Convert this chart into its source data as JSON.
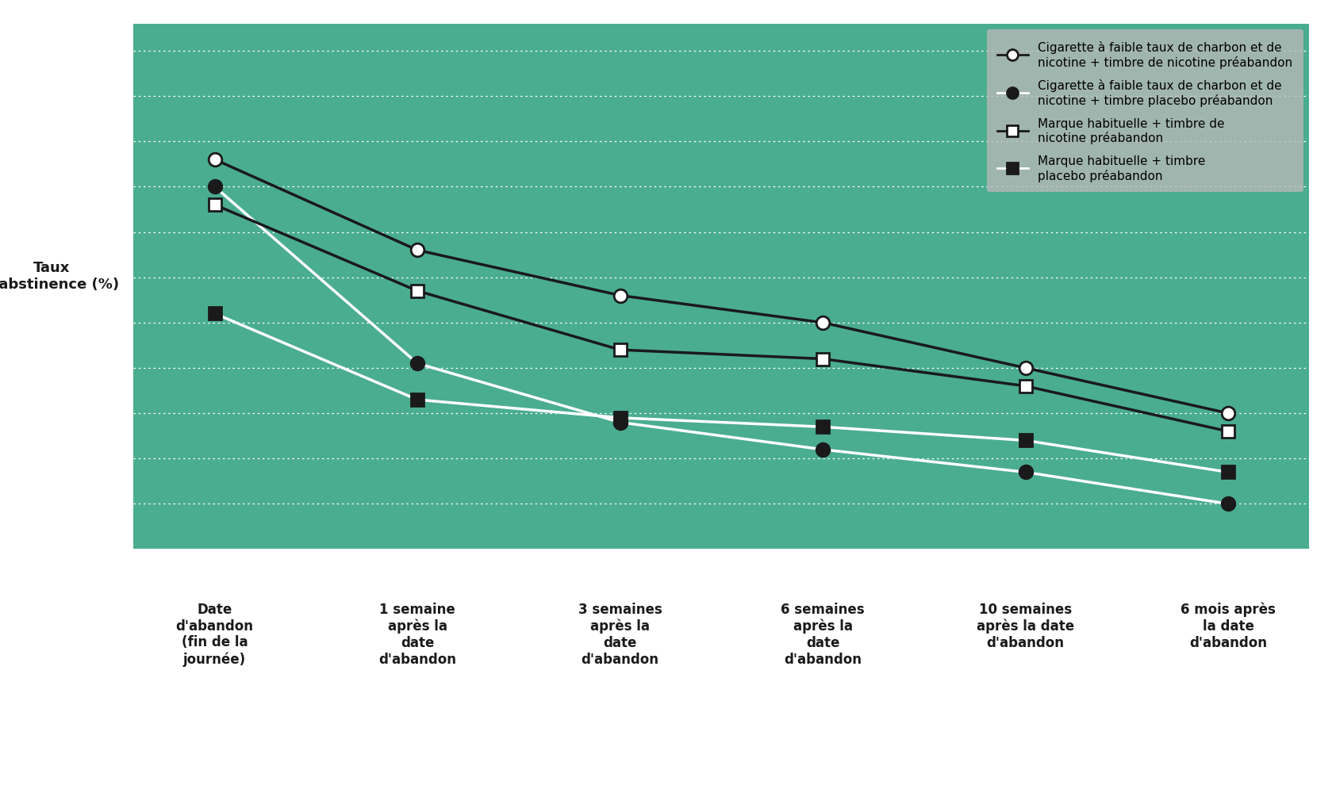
{
  "x_labels": [
    "Date\nd'abandon\n(fin de la\njournée)",
    "1 semaine\naprès la\ndate\nd'abandon",
    "3 semaines\naprès la\ndate\nd'abandon",
    "6 semaines\naprès la\ndate\nd'abandon",
    "10 semaines\naprès la date\nd'abandon",
    "6 mois après\nla date\nd'abandon"
  ],
  "series": [
    {
      "label": "Cigarette à faible taux de charbon et de\nnicotine + timbre de nicotine préabandon",
      "values": [
        43,
        33,
        28,
        25,
        20,
        15
      ],
      "color": "#1a1a1a",
      "marker": "o",
      "marker_facecolor": "white",
      "marker_edgecolor": "#1a1a1a",
      "linewidth": 2.5,
      "markersize": 12
    },
    {
      "label": "Cigarette à faible taux de charbon et de\nnicotine + timbre placebo préabandon",
      "values": [
        40,
        20.5,
        14,
        11,
        8.5,
        5
      ],
      "color": "white",
      "marker": "o",
      "marker_facecolor": "#1a1a1a",
      "marker_edgecolor": "#1a1a1a",
      "linewidth": 2.5,
      "markersize": 12
    },
    {
      "label": "Marque habituelle + timbre de\nnicotine préabandon",
      "values": [
        38,
        28.5,
        22,
        21,
        18,
        13
      ],
      "color": "#1a1a1a",
      "marker": "s",
      "marker_facecolor": "white",
      "marker_edgecolor": "#1a1a1a",
      "linewidth": 2.5,
      "markersize": 11
    },
    {
      "label": "Marque habituelle + timbre\nplacebo préabandon",
      "values": [
        26,
        16.5,
        14.5,
        13.5,
        12,
        8.5
      ],
      "color": "white",
      "marker": "s",
      "marker_facecolor": "#1a1a1a",
      "marker_edgecolor": "#1a1a1a",
      "linewidth": 2.5,
      "markersize": 11
    }
  ],
  "ylabel": "Taux\nd'abstinence (%)",
  "ylim": [
    0,
    58
  ],
  "yticks": [
    0,
    5,
    10,
    15,
    20,
    25,
    30,
    35,
    40,
    45,
    50,
    55
  ],
  "figure_background": "#ffffff",
  "plot_background_color": "#4aad90",
  "legend_background": "#b8b8b8",
  "grid_color": "white",
  "axis_color": "white",
  "tick_label_color": "white",
  "xlabel_color": "#1a1a1a",
  "ylabel_color": "#1a1a1a",
  "tick_fontsize": 13,
  "xlabel_fontsize": 12,
  "ylabel_fontsize": 13,
  "legend_fontsize": 11,
  "markersize_legend": 10
}
